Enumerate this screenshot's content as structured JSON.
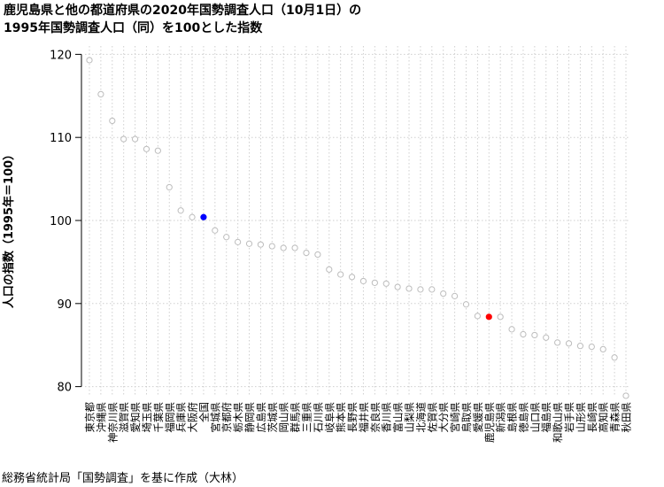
{
  "chart_data": {
    "type": "scatter",
    "title_line1": "鹿児島県と他の都道府県の2020年国勢調査人口（10月1日）の",
    "title_line2": "1995年国勢調査人口（同）を100とした指数",
    "ylabel": "人口の指数（1995年＝100）",
    "xlabel": "",
    "ylim": [
      79,
      121
    ],
    "yticks": [
      80,
      90,
      100,
      110,
      120
    ],
    "grid": true,
    "legend": "none",
    "colors": {
      "default": "#cccccc",
      "kagoshima": "#ff0000",
      "national": "#0000ff"
    },
    "categories": [
      "東京都",
      "沖縄県",
      "神奈川県",
      "滋賀県",
      "愛知県",
      "埼玉県",
      "千葉県",
      "福岡県",
      "兵庫県",
      "大阪府",
      "全国",
      "宮城県",
      "京都府",
      "栃木県",
      "静岡県",
      "広島県",
      "茨城県",
      "岡山県",
      "群馬県",
      "三重県",
      "石川県",
      "岐阜県",
      "熊本県",
      "長野県",
      "福井県",
      "奈良県",
      "香川県",
      "富山県",
      "山梨県",
      "北海道",
      "佐賀県",
      "大分県",
      "宮崎県",
      "鳥取県",
      "愛媛県",
      "鹿児島県",
      "新潟県",
      "島根県",
      "徳島県",
      "山口県",
      "福島県",
      "和歌山県",
      "岩手県",
      "山形県",
      "長崎県",
      "高知県",
      "青森県",
      "秋田県"
    ],
    "values": [
      119.3,
      115.2,
      112.0,
      109.8,
      109.8,
      108.6,
      108.4,
      104.0,
      101.2,
      100.4,
      100.4,
      98.8,
      98.0,
      97.4,
      97.2,
      97.1,
      96.9,
      96.7,
      96.7,
      96.1,
      95.9,
      94.1,
      93.5,
      93.2,
      92.7,
      92.5,
      92.4,
      92.0,
      91.8,
      91.7,
      91.7,
      91.2,
      90.9,
      89.9,
      88.5,
      88.4,
      88.4,
      86.9,
      86.3,
      86.2,
      85.9,
      85.3,
      85.2,
      84.9,
      84.8,
      84.5,
      83.5,
      78.9
    ],
    "highlight": {
      "鹿児島県": "kagoshima",
      "全国": "national"
    }
  },
  "source_note": "総務省統計局「国勢調査」を基に作成（大林）"
}
